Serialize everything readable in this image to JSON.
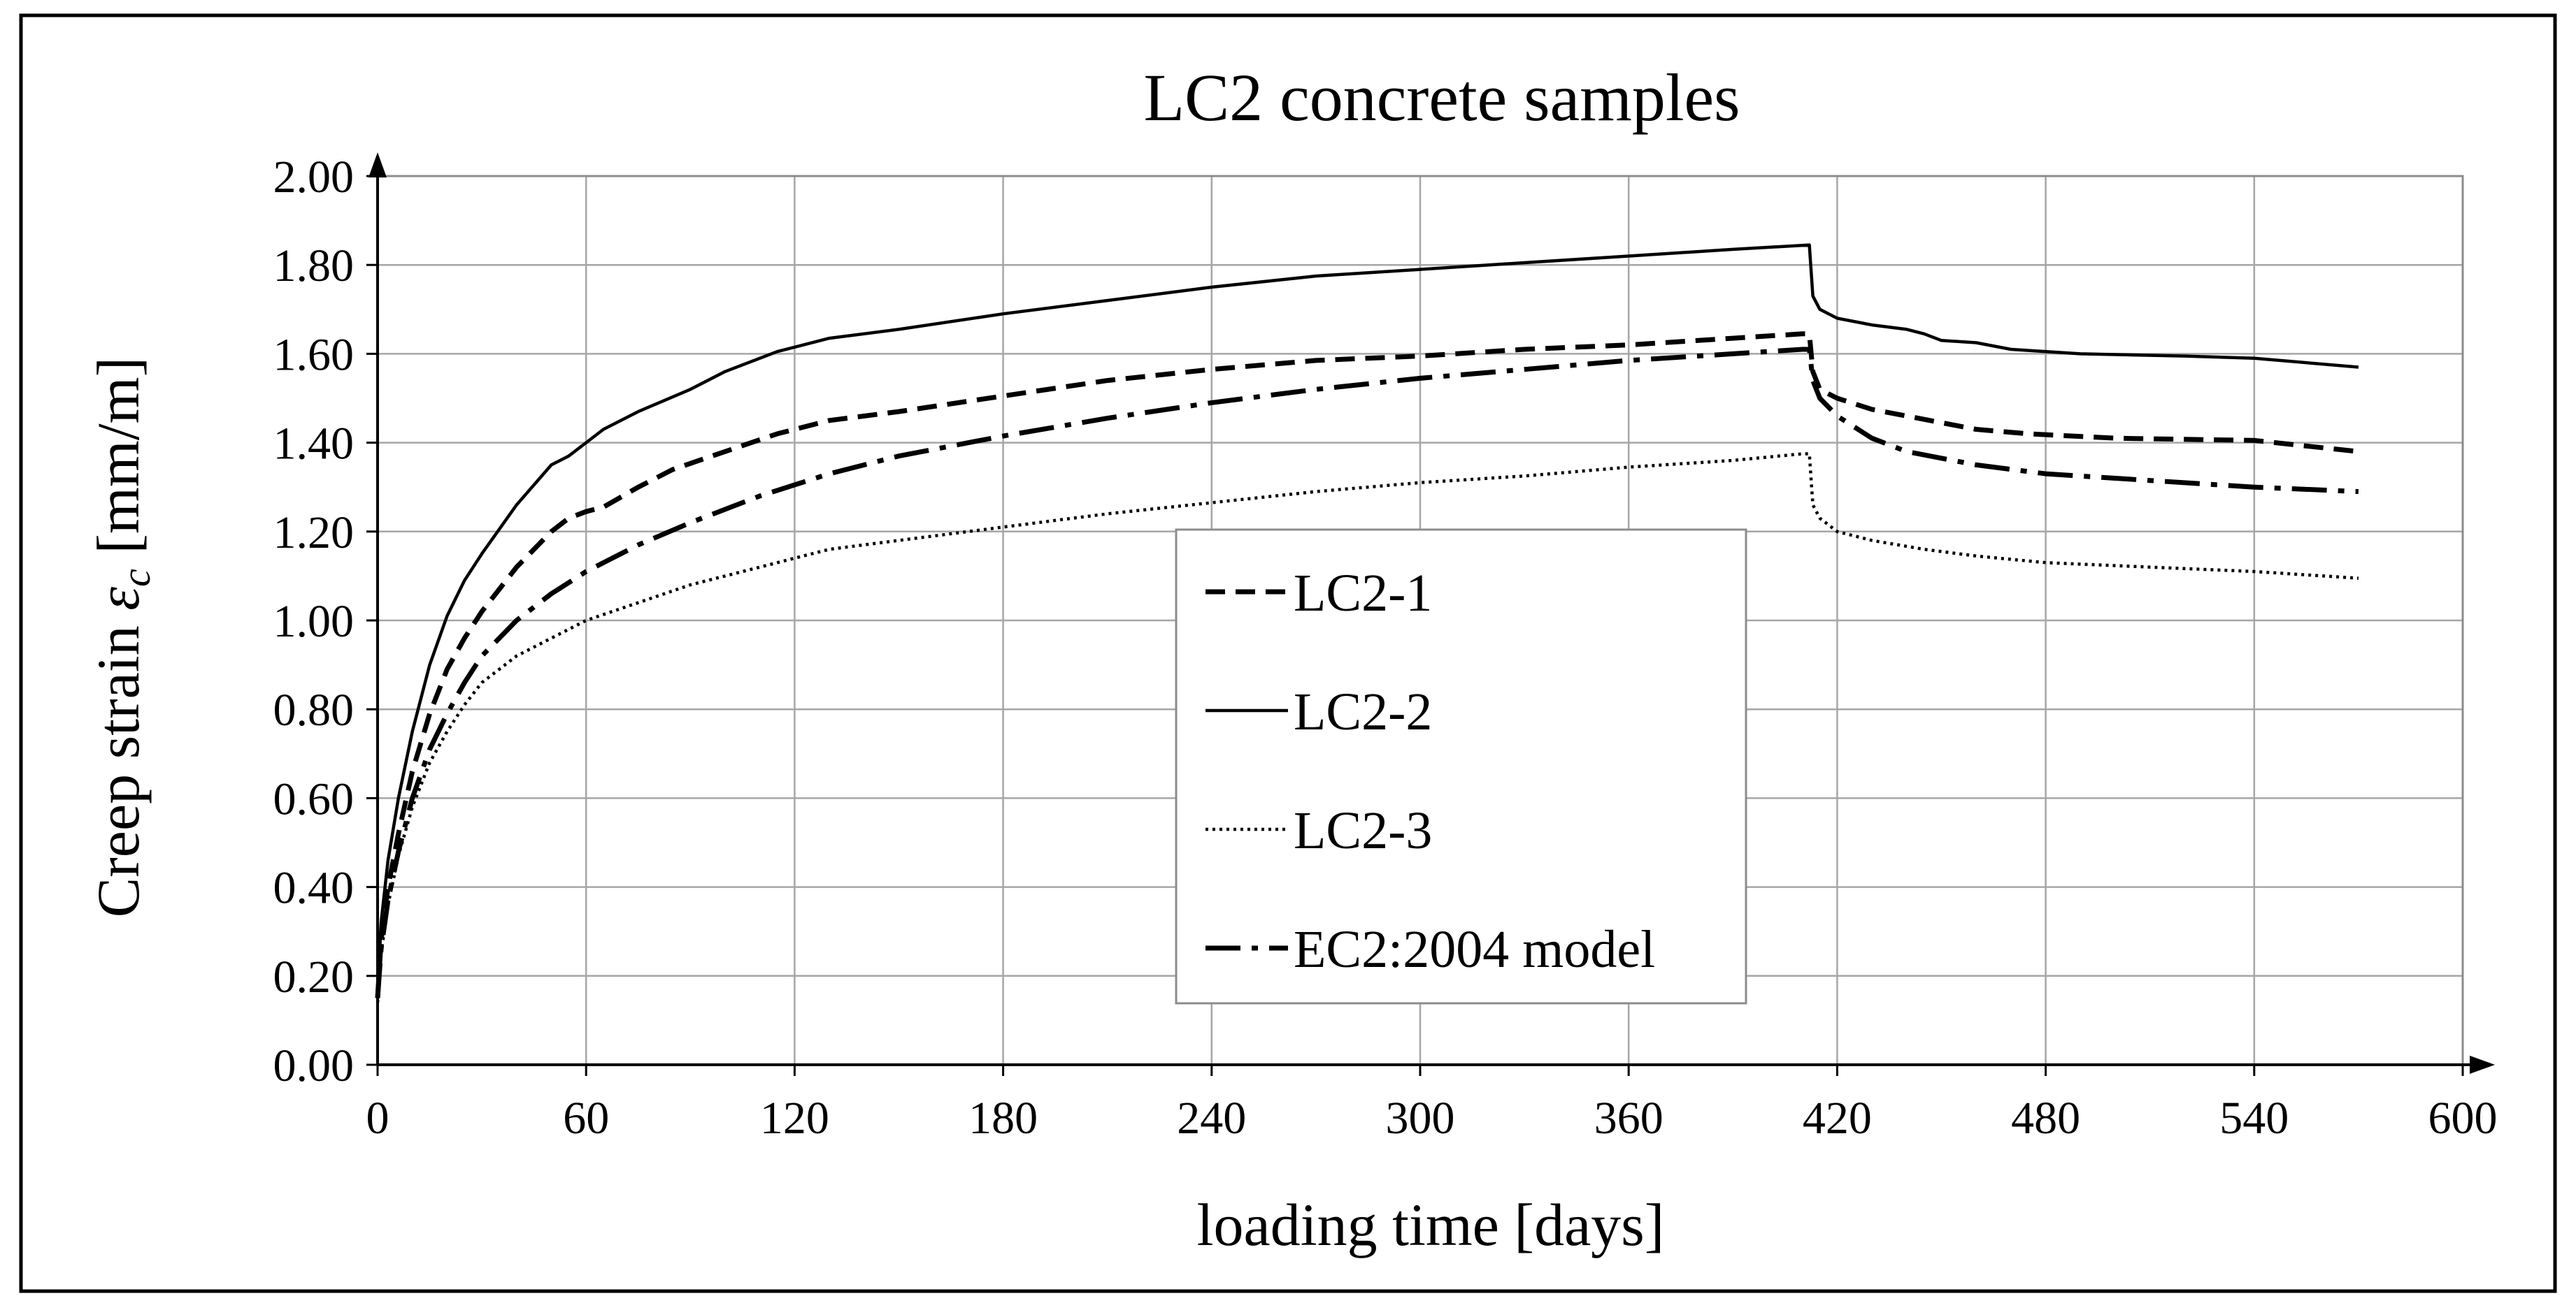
{
  "chart_data": {
    "type": "line",
    "title": "LC2 concrete samples",
    "xlabel": "loading time [days]",
    "ylabel": "Creep strain εc [mm/m]",
    "ylabel_parts": {
      "main": "Creep strain ",
      "symbol": "ε",
      "subscript": "c",
      "unit": " [mm/m]"
    },
    "xlim": [
      0,
      600
    ],
    "ylim": [
      0,
      2
    ],
    "x_ticks": [
      0,
      60,
      120,
      180,
      240,
      300,
      360,
      420,
      480,
      540,
      600
    ],
    "x_tick_labels": [
      "0",
      "60",
      "120",
      "180",
      "240",
      "300",
      "360",
      "420",
      "480",
      "540",
      "600"
    ],
    "y_ticks": [
      0,
      0.2,
      0.4,
      0.6,
      0.8,
      1.0,
      1.2,
      1.4,
      1.6,
      1.8,
      2.0
    ],
    "y_tick_labels": [
      "0.00",
      "0.20",
      "0.40",
      "0.60",
      "0.80",
      "1.00",
      "1.20",
      "1.40",
      "1.60",
      "1.80",
      "2.00"
    ],
    "grid": true,
    "legend_position": "center",
    "series": [
      {
        "name": "LC2-1",
        "style": "dashed",
        "points": [
          [
            0,
            0.15
          ],
          [
            1,
            0.28
          ],
          [
            3,
            0.4
          ],
          [
            6,
            0.52
          ],
          [
            10,
            0.66
          ],
          [
            15,
            0.79
          ],
          [
            20,
            0.89
          ],
          [
            25,
            0.96
          ],
          [
            30,
            1.02
          ],
          [
            40,
            1.12
          ],
          [
            50,
            1.2
          ],
          [
            55,
            1.23
          ],
          [
            60,
            1.245
          ],
          [
            65,
            1.255
          ],
          [
            75,
            1.3
          ],
          [
            85,
            1.34
          ],
          [
            100,
            1.38
          ],
          [
            115,
            1.42
          ],
          [
            130,
            1.45
          ],
          [
            150,
            1.47
          ],
          [
            180,
            1.505
          ],
          [
            210,
            1.54
          ],
          [
            240,
            1.565
          ],
          [
            270,
            1.585
          ],
          [
            300,
            1.595
          ],
          [
            330,
            1.61
          ],
          [
            360,
            1.62
          ],
          [
            390,
            1.635
          ],
          [
            410,
            1.645
          ],
          [
            412,
            1.645
          ],
          [
            413,
            1.56
          ],
          [
            415,
            1.52
          ],
          [
            420,
            1.5
          ],
          [
            430,
            1.475
          ],
          [
            440,
            1.46
          ],
          [
            450,
            1.445
          ],
          [
            460,
            1.43
          ],
          [
            475,
            1.42
          ],
          [
            500,
            1.41
          ],
          [
            540,
            1.405
          ],
          [
            570,
            1.38
          ]
        ]
      },
      {
        "name": "LC2-2",
        "style": "solid",
        "points": [
          [
            0,
            0.16
          ],
          [
            1,
            0.32
          ],
          [
            3,
            0.46
          ],
          [
            6,
            0.6
          ],
          [
            10,
            0.75
          ],
          [
            15,
            0.9
          ],
          [
            20,
            1.01
          ],
          [
            25,
            1.09
          ],
          [
            30,
            1.15
          ],
          [
            40,
            1.26
          ],
          [
            50,
            1.35
          ],
          [
            55,
            1.37
          ],
          [
            60,
            1.4
          ],
          [
            65,
            1.43
          ],
          [
            75,
            1.47
          ],
          [
            90,
            1.52
          ],
          [
            100,
            1.56
          ],
          [
            115,
            1.605
          ],
          [
            130,
            1.635
          ],
          [
            150,
            1.655
          ],
          [
            180,
            1.69
          ],
          [
            210,
            1.72
          ],
          [
            240,
            1.75
          ],
          [
            270,
            1.775
          ],
          [
            300,
            1.79
          ],
          [
            330,
            1.805
          ],
          [
            360,
            1.82
          ],
          [
            390,
            1.835
          ],
          [
            412,
            1.845
          ],
          [
            413,
            1.73
          ],
          [
            415,
            1.7
          ],
          [
            420,
            1.68
          ],
          [
            430,
            1.665
          ],
          [
            440,
            1.655
          ],
          [
            445,
            1.645
          ],
          [
            450,
            1.63
          ],
          [
            460,
            1.625
          ],
          [
            470,
            1.61
          ],
          [
            490,
            1.6
          ],
          [
            520,
            1.595
          ],
          [
            540,
            1.59
          ],
          [
            570,
            1.57
          ]
        ]
      },
      {
        "name": "LC2-3",
        "style": "dotted",
        "points": [
          [
            0,
            0.14
          ],
          [
            1,
            0.25
          ],
          [
            3,
            0.36
          ],
          [
            6,
            0.47
          ],
          [
            10,
            0.58
          ],
          [
            15,
            0.68
          ],
          [
            20,
            0.75
          ],
          [
            25,
            0.81
          ],
          [
            30,
            0.86
          ],
          [
            40,
            0.92
          ],
          [
            50,
            0.96
          ],
          [
            60,
            1.0
          ],
          [
            75,
            1.04
          ],
          [
            90,
            1.08
          ],
          [
            110,
            1.12
          ],
          [
            130,
            1.16
          ],
          [
            150,
            1.18
          ],
          [
            180,
            1.21
          ],
          [
            210,
            1.24
          ],
          [
            240,
            1.265
          ],
          [
            270,
            1.29
          ],
          [
            300,
            1.31
          ],
          [
            330,
            1.325
          ],
          [
            360,
            1.345
          ],
          [
            390,
            1.36
          ],
          [
            410,
            1.375
          ],
          [
            412,
            1.375
          ],
          [
            413,
            1.26
          ],
          [
            415,
            1.23
          ],
          [
            420,
            1.2
          ],
          [
            430,
            1.18
          ],
          [
            445,
            1.16
          ],
          [
            460,
            1.145
          ],
          [
            480,
            1.13
          ],
          [
            510,
            1.12
          ],
          [
            540,
            1.11
          ],
          [
            570,
            1.095
          ]
        ]
      },
      {
        "name": "EC2:2004 model",
        "style": "dashdot",
        "points": [
          [
            0,
            0.15
          ],
          [
            1,
            0.26
          ],
          [
            3,
            0.37
          ],
          [
            6,
            0.48
          ],
          [
            10,
            0.6
          ],
          [
            15,
            0.71
          ],
          [
            20,
            0.79
          ],
          [
            25,
            0.86
          ],
          [
            30,
            0.92
          ],
          [
            40,
            1.0
          ],
          [
            50,
            1.06
          ],
          [
            60,
            1.11
          ],
          [
            75,
            1.17
          ],
          [
            90,
            1.22
          ],
          [
            110,
            1.28
          ],
          [
            130,
            1.33
          ],
          [
            150,
            1.37
          ],
          [
            180,
            1.415
          ],
          [
            210,
            1.455
          ],
          [
            240,
            1.49
          ],
          [
            270,
            1.52
          ],
          [
            300,
            1.545
          ],
          [
            330,
            1.565
          ],
          [
            360,
            1.585
          ],
          [
            390,
            1.6
          ],
          [
            410,
            1.61
          ],
          [
            412,
            1.61
          ],
          [
            413,
            1.54
          ],
          [
            415,
            1.5
          ],
          [
            420,
            1.46
          ],
          [
            430,
            1.41
          ],
          [
            440,
            1.38
          ],
          [
            460,
            1.35
          ],
          [
            480,
            1.33
          ],
          [
            510,
            1.315
          ],
          [
            540,
            1.3
          ],
          [
            570,
            1.29
          ]
        ]
      }
    ]
  }
}
